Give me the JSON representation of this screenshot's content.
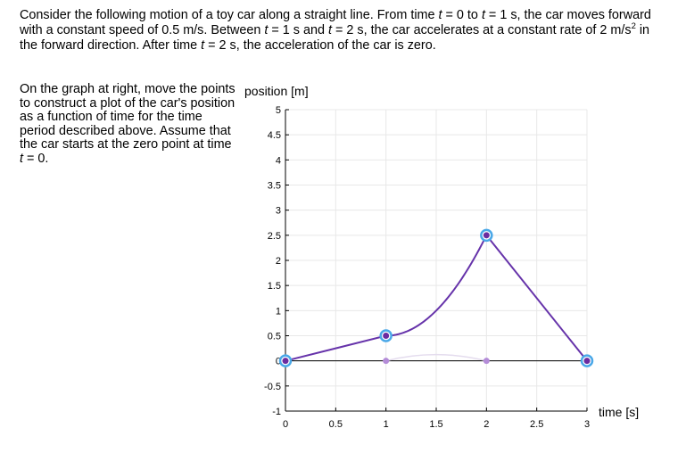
{
  "problem": {
    "p1": "Consider the following motion of a toy car along a straight line. From time ",
    "t1": "t",
    "p2": " = 0 to ",
    "t2": "t",
    "p3": " = 1 s, the car moves forward with a constant speed of 0.5 m/s. Between ",
    "t3": "t",
    "p4": " = 1 s and ",
    "t4": "t",
    "p5": " = 2 s, the car accelerates at a constant rate of 2 m/s",
    "sup": "2",
    "p6": " in the forward direction. After time ",
    "t5": "t",
    "p7": " = 2 s, the acceleration of the car is zero."
  },
  "instructions": {
    "p1": "On the graph at right, move the points to construct a plot of the car's position as a function of time for the time period described above. Assume that the car starts at the zero point at time ",
    "t1": "t",
    "p2": " = 0."
  },
  "chart_data": {
    "type": "line",
    "xlabel": "time [s]",
    "ylabel": "position [m]",
    "xlim": [
      0,
      3
    ],
    "ylim": [
      -1,
      5
    ],
    "x_ticks": [
      "0",
      "0.5",
      "1",
      "1.5",
      "2",
      "2.5",
      "3"
    ],
    "y_ticks": [
      "5",
      "4.5",
      "4",
      "3.5",
      "3",
      "2.5",
      "2",
      "1.5",
      "1",
      "0.5",
      "0",
      "-0.5",
      "-1"
    ],
    "x_tick_values": [
      0,
      0.5,
      1,
      1.5,
      2,
      2.5,
      3
    ],
    "y_tick_values": [
      5,
      4.5,
      4,
      3.5,
      3,
      2.5,
      2,
      1.5,
      1,
      0.5,
      0,
      -0.5,
      -1
    ],
    "grid": true,
    "series": [
      {
        "points": [
          {
            "x": 0,
            "y": 0
          },
          {
            "x": 1,
            "y": 0.5
          },
          {
            "x": 2,
            "y": 2.5
          },
          {
            "x": 3,
            "y": 0
          }
        ]
      }
    ],
    "ghost_points": [
      {
        "x": 1,
        "y": 0
      },
      {
        "x": 2,
        "y": 0
      }
    ],
    "colors": {
      "curve": "#6633aa",
      "handle_ring": "#4aa8e8",
      "handle_dot": "#6b2ba0",
      "ghost": "#b48cd8",
      "grid": "#e8e8e8"
    }
  }
}
